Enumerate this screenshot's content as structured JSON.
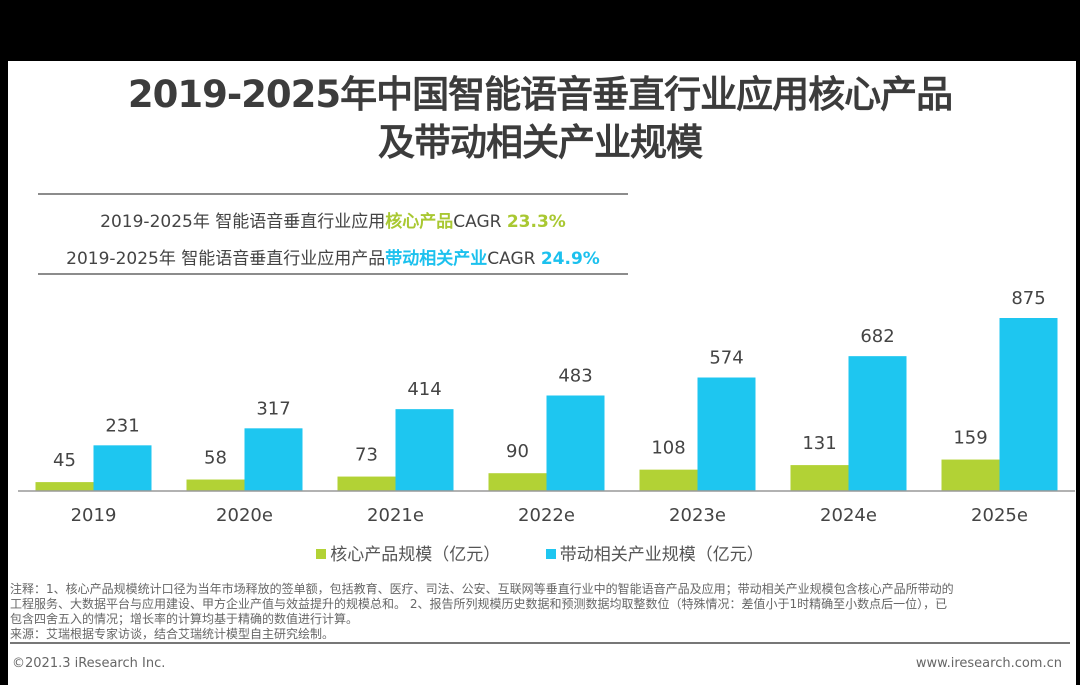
{
  "title_line1": "2019-2025年中国智能语音垂直行业应用核心产品",
  "title_line2": "及带动相关产业规模",
  "cagr": [
    {
      "prefix": "2019-2025年 智能语音垂直行业应用",
      "highlight": "核心产品",
      "suffix": "CAGR ",
      "value": "23.3%",
      "color": "#a9c832"
    },
    {
      "prefix": "2019-2025年 智能语音垂直行业应用产品",
      "highlight": "带动相关产业",
      "suffix": "CAGR ",
      "value": "24.9%",
      "color": "#1cc1ee"
    }
  ],
  "chart_data": {
    "type": "bar",
    "title": "2019-2025年中国智能语音垂直行业应用核心产品及带动相关产业规模",
    "categories": [
      "2019",
      "2020e",
      "2021e",
      "2022e",
      "2023e",
      "2024e",
      "2025e"
    ],
    "series": [
      {
        "name": "核心产品规模（亿元）",
        "color": "#b2d235",
        "values": [
          45,
          58,
          73,
          90,
          108,
          131,
          159
        ]
      },
      {
        "name": "带动相关产业规模（亿元）",
        "color": "#1ec6f0",
        "values": [
          231,
          317,
          414,
          483,
          574,
          682,
          875
        ]
      }
    ],
    "xlabel": "",
    "ylabel": "",
    "ylim": [
      0,
      875
    ],
    "grid": false,
    "legend": "bottom-center",
    "data_labels": true
  },
  "notes": {
    "line1": "注释：1、核心产品规模统计口径为当年市场释放的签单额，包括教育、医疗、司法、公安、互联网等垂直行业中的智能语音产品及应用；带动相关产业规模包含核心产品所带动的",
    "line2": "工程服务、大数据平台与应用建设、甲方企业产值与效益提升的规模总和。 2、报告所列规模历史数据和预测数据均取整数位（特殊情况：差值小于1时精确至小数点后一位），已",
    "line3": "包含四舍五入的情况；增长率的计算均基于精确的数值进行计算。",
    "source": "来源：艾瑞根据专家访谈，结合艾瑞统计模型自主研究绘制。"
  },
  "footer": {
    "copyright": "©2021.3 iResearch Inc.",
    "website": "www.iresearch.com.cn"
  }
}
